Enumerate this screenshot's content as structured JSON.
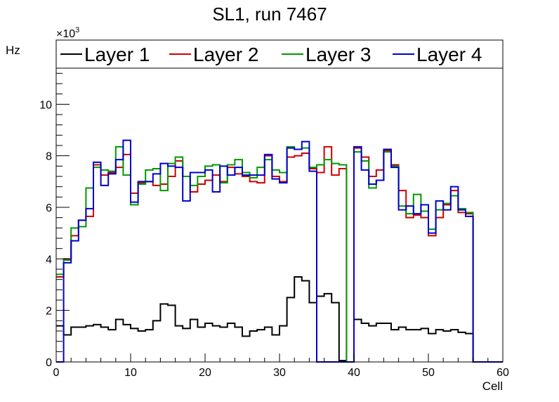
{
  "chart_data": {
    "type": "line",
    "style": "step-histogram",
    "title": "SL1, run 7467",
    "xlabel": "Cell",
    "ylabel": "Hz",
    "y_exponent_label": "×10",
    "y_exponent_power": "3",
    "xlim": [
      0,
      60
    ],
    "ylim": [
      0,
      11400
    ],
    "x_ticks": [
      0,
      10,
      20,
      30,
      40,
      50,
      60
    ],
    "x_tick_labels": [
      "0",
      "10",
      "20",
      "30",
      "40",
      "50",
      "60"
    ],
    "y_ticks": [
      0,
      2000,
      4000,
      6000,
      8000,
      10000
    ],
    "y_tick_labels": [
      "0",
      "2",
      "4",
      "6",
      "8",
      "10"
    ],
    "grid": false,
    "legend_position": "top",
    "bin_edges_start": 0,
    "bin_width": 1,
    "series": [
      {
        "name": "Layer 1",
        "color": "#000000",
        "values": [
          1400,
          1050,
          1350,
          1350,
          1400,
          1450,
          1350,
          1250,
          1650,
          1450,
          1300,
          1200,
          1250,
          1600,
          2250,
          2200,
          1400,
          1300,
          1650,
          1350,
          1500,
          1400,
          1350,
          1500,
          1350,
          1000,
          1200,
          1250,
          1350,
          1050,
          1400,
          2500,
          3300,
          3150,
          2300,
          2550,
          2650,
          2300,
          50,
          0,
          1650,
          1500,
          1400,
          1500,
          1500,
          1250,
          1350,
          1250,
          1250,
          1300,
          1100,
          1250,
          1200,
          1250,
          1150,
          1100,
          0,
          0,
          0,
          0
        ]
      },
      {
        "name": "Layer 2",
        "color": "#cc0000",
        "values": [
          3300,
          4000,
          4900,
          5500,
          5650,
          7650,
          7250,
          7350,
          7550,
          8050,
          6550,
          6950,
          7000,
          6850,
          6900,
          7200,
          7800,
          7200,
          6600,
          6900,
          7050,
          7250,
          7000,
          7550,
          7300,
          7200,
          7000,
          6950,
          8000,
          7200,
          7000,
          7950,
          8000,
          8100,
          7500,
          7350,
          8350,
          7250,
          7500,
          0,
          8300,
          7950,
          7200,
          7450,
          8200,
          7650,
          6650,
          5600,
          5700,
          5600,
          4900,
          5600,
          6100,
          6650,
          5800,
          5750,
          0,
          0,
          0,
          0
        ]
      },
      {
        "name": "Layer 3",
        "color": "#009900",
        "values": [
          3400,
          3950,
          5200,
          5250,
          6750,
          7550,
          7450,
          7400,
          8350,
          7250,
          6100,
          6900,
          7450,
          7500,
          6650,
          7700,
          7950,
          7200,
          6850,
          7200,
          7600,
          7650,
          6950,
          7650,
          7850,
          7350,
          7150,
          7550,
          7850,
          7450,
          7350,
          8350,
          8250,
          8300,
          7550,
          7650,
          7850,
          7700,
          7650,
          0,
          8150,
          7800,
          6750,
          7050,
          8150,
          7600,
          6050,
          5750,
          6500,
          5850,
          5150,
          5900,
          6150,
          6450,
          5950,
          5800,
          0,
          0,
          0,
          0
        ]
      },
      {
        "name": "Layer 4",
        "color": "#0000cc",
        "values": [
          0,
          3850,
          4700,
          5500,
          5950,
          7750,
          6850,
          7300,
          7850,
          8600,
          6200,
          7000,
          7000,
          7300,
          7700,
          7600,
          7550,
          6250,
          7350,
          7350,
          7450,
          6600,
          7600,
          7250,
          7550,
          7250,
          7250,
          7250,
          8050,
          7100,
          6950,
          8300,
          8250,
          8550,
          7400,
          0,
          0,
          0,
          0,
          0,
          8350,
          7450,
          6900,
          7050,
          8250,
          7550,
          5900,
          6050,
          5750,
          6100,
          5000,
          6250,
          5900,
          6800,
          5900,
          5650,
          0,
          0,
          0,
          0
        ]
      }
    ]
  }
}
